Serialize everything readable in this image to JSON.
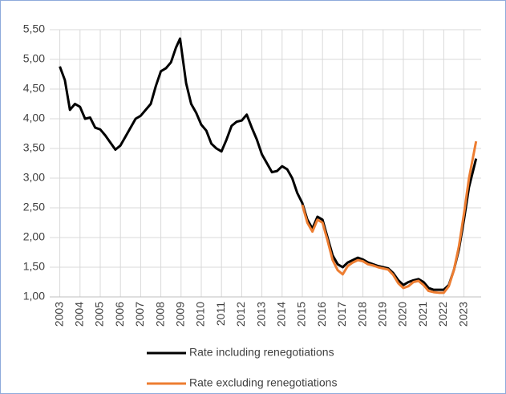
{
  "chart_data": {
    "type": "line",
    "x": [
      2003,
      2003.25,
      2003.5,
      2003.75,
      2004,
      2004.25,
      2004.5,
      2004.75,
      2005,
      2005.25,
      2005.5,
      2005.75,
      2006,
      2006.25,
      2006.5,
      2006.75,
      2007,
      2007.25,
      2007.5,
      2007.75,
      2008,
      2008.25,
      2008.5,
      2008.75,
      2008.95,
      2009.25,
      2009.5,
      2009.75,
      2010,
      2010.25,
      2010.5,
      2010.75,
      2011,
      2011.25,
      2011.5,
      2011.75,
      2012,
      2012.25,
      2012.5,
      2012.75,
      2013,
      2013.25,
      2013.5,
      2013.75,
      2014,
      2014.25,
      2014.5,
      2014.75,
      2015,
      2015.25,
      2015.5,
      2015.75,
      2016,
      2016.25,
      2016.5,
      2016.75,
      2017,
      2017.25,
      2017.5,
      2017.75,
      2018,
      2018.25,
      2018.5,
      2018.75,
      2019,
      2019.25,
      2019.5,
      2019.75,
      2020,
      2020.25,
      2020.5,
      2020.75,
      2021,
      2021.25,
      2021.5,
      2021.75,
      2022,
      2022.25,
      2022.5,
      2022.75,
      2023,
      2023.25,
      2023.6
    ],
    "series": [
      {
        "name": "Rate including renegotiations",
        "color": "#000000",
        "values": [
          4.88,
          4.65,
          4.15,
          4.25,
          4.2,
          4.0,
          4.02,
          3.85,
          3.82,
          3.72,
          3.6,
          3.48,
          3.55,
          3.7,
          3.85,
          4.0,
          4.05,
          4.15,
          4.25,
          4.55,
          4.8,
          4.85,
          4.95,
          5.2,
          5.35,
          4.6,
          4.25,
          4.1,
          3.9,
          3.8,
          3.58,
          3.5,
          3.45,
          3.65,
          3.88,
          3.95,
          3.97,
          4.07,
          3.85,
          3.65,
          3.4,
          3.25,
          3.1,
          3.12,
          3.2,
          3.15,
          3.0,
          2.75,
          2.58,
          2.3,
          2.15,
          2.35,
          2.3,
          2.0,
          1.7,
          1.55,
          1.5,
          1.58,
          1.62,
          1.66,
          1.63,
          1.58,
          1.55,
          1.52,
          1.5,
          1.48,
          1.4,
          1.28,
          1.2,
          1.25,
          1.28,
          1.3,
          1.25,
          1.15,
          1.12,
          1.12,
          1.12,
          1.2,
          1.45,
          1.8,
          2.3,
          2.85,
          3.33
        ]
      },
      {
        "name": "Rate excluding renegotiations",
        "color": "#ed7d31",
        "values": [
          null,
          null,
          null,
          null,
          null,
          null,
          null,
          null,
          null,
          null,
          null,
          null,
          null,
          null,
          null,
          null,
          null,
          null,
          null,
          null,
          null,
          null,
          null,
          null,
          null,
          null,
          null,
          null,
          null,
          null,
          null,
          null,
          null,
          null,
          null,
          null,
          null,
          null,
          null,
          null,
          null,
          null,
          null,
          null,
          null,
          null,
          null,
          null,
          2.55,
          2.25,
          2.1,
          2.3,
          2.25,
          1.95,
          1.62,
          1.45,
          1.38,
          1.52,
          1.58,
          1.62,
          1.6,
          1.55,
          1.53,
          1.5,
          1.48,
          1.46,
          1.37,
          1.23,
          1.15,
          1.18,
          1.25,
          1.27,
          1.2,
          1.1,
          1.08,
          1.07,
          1.07,
          1.18,
          1.45,
          1.85,
          2.4,
          3.0,
          3.62
        ]
      }
    ],
    "xlim": [
      2002.5,
      2023.85
    ],
    "xticks": [
      2003,
      2004,
      2005,
      2006,
      2007,
      2008,
      2009,
      2010,
      2011,
      2012,
      2013,
      2014,
      2015,
      2016,
      2017,
      2018,
      2019,
      2020,
      2021,
      2022,
      2023
    ],
    "ylim": [
      1,
      5.5
    ],
    "yticks": [
      {
        "value": 1,
        "label": "1,00"
      },
      {
        "value": 1.5,
        "label": "1,50"
      },
      {
        "value": 2,
        "label": "2,00"
      },
      {
        "value": 2.5,
        "label": "2,50"
      },
      {
        "value": 3,
        "label": "3,00"
      },
      {
        "value": 3.5,
        "label": "3,50"
      },
      {
        "value": 4,
        "label": "4,00"
      },
      {
        "value": 4.5,
        "label": "4,50"
      },
      {
        "value": 5,
        "label": "5,00"
      },
      {
        "value": 5.5,
        "label": "5,50"
      }
    ],
    "grid": true
  }
}
